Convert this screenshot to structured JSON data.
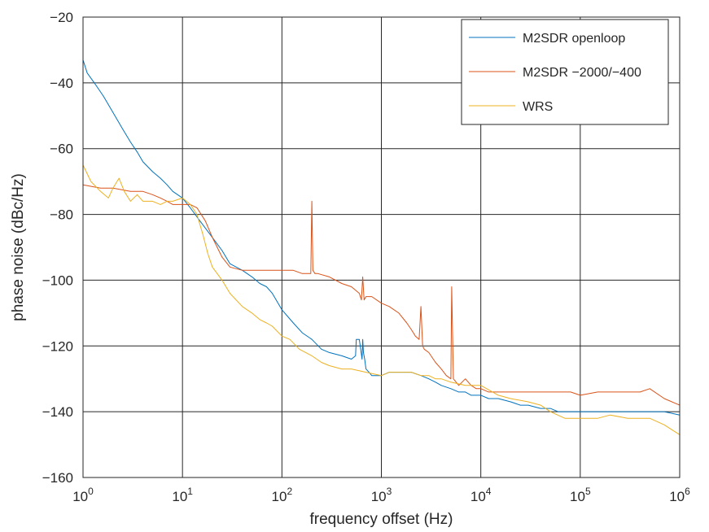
{
  "chart_data": {
    "type": "line",
    "title": "",
    "xlabel": "frequency offset (Hz)",
    "ylabel": "phase noise (dBc/Hz)",
    "xscale": "log",
    "xlim": [
      1,
      1000000
    ],
    "ylim": [
      -160,
      -20
    ],
    "x_ticks": [
      1,
      10,
      100,
      1000,
      10000,
      100000,
      1000000
    ],
    "x_tick_labels": [
      {
        "base": "10",
        "exp": "0"
      },
      {
        "base": "10",
        "exp": "1"
      },
      {
        "base": "10",
        "exp": "2"
      },
      {
        "base": "10",
        "exp": "3"
      },
      {
        "base": "10",
        "exp": "4"
      },
      {
        "base": "10",
        "exp": "5"
      },
      {
        "base": "10",
        "exp": "6"
      }
    ],
    "y_ticks": [
      -160,
      -140,
      -120,
      -100,
      -80,
      -60,
      -40,
      -20
    ],
    "y_tick_labels": [
      "−160",
      "−140",
      "−120",
      "−100",
      "−80",
      "−60",
      "−40",
      "−20"
    ],
    "grid": true,
    "legend_position": "top-right",
    "series": [
      {
        "name": "M2SDR openloop",
        "color": "#0072bd",
        "x": [
          1,
          1.1,
          1.3,
          1.6,
          2,
          2.5,
          3,
          3.5,
          4,
          5,
          6,
          7,
          8,
          10,
          12,
          15,
          20,
          25,
          30,
          40,
          50,
          60,
          70,
          80,
          100,
          130,
          160,
          200,
          250,
          300,
          400,
          500,
          550,
          560,
          600,
          620,
          640,
          650,
          660,
          680,
          700,
          750,
          800,
          900,
          1000,
          1200,
          1500,
          2000,
          2500,
          3000,
          3500,
          4000,
          5000,
          6000,
          7000,
          8000,
          10000,
          12000,
          15000,
          20000,
          25000,
          30000,
          40000,
          50000,
          60000,
          70000,
          80000,
          100000,
          150000,
          200000,
          300000,
          500000,
          700000,
          1000000
        ],
        "y": [
          -33,
          -37,
          -40,
          -44,
          -49,
          -54,
          -58,
          -61,
          -64,
          -67,
          -69,
          -71,
          -73,
          -75,
          -78,
          -82,
          -87,
          -91,
          -95,
          -97,
          -99,
          -101,
          -102,
          -104,
          -109,
          -113,
          -116,
          -118,
          -121,
          -122,
          -123,
          -124,
          -123,
          -118,
          -118,
          -121,
          -124,
          -118,
          -122,
          -124,
          -127,
          -128,
          -129,
          -129,
          -129,
          -128,
          -128,
          -128,
          -129,
          -130,
          -131,
          -132,
          -133,
          -134,
          -134,
          -135,
          -135,
          -136,
          -136,
          -137,
          -138,
          -138,
          -139,
          -139,
          -140,
          -140,
          -140,
          -140,
          -140,
          -140,
          -140,
          -140,
          -140,
          -141
        ]
      },
      {
        "name": "M2SDR −2000/−400",
        "color": "#d95319",
        "x": [
          1,
          1.5,
          2,
          3,
          4,
          5,
          6,
          7,
          8,
          10,
          12,
          14,
          17,
          20,
          25,
          30,
          40,
          50,
          70,
          100,
          130,
          160,
          180,
          195,
          200,
          205,
          215,
          230,
          300,
          400,
          500,
          600,
          630,
          650,
          670,
          700,
          800,
          1000,
          1200,
          1500,
          1800,
          2000,
          2200,
          2400,
          2500,
          2600,
          2700,
          3000,
          3500,
          4000,
          4500,
          5000,
          5100,
          5300,
          6000,
          7000,
          8000,
          9000,
          10000,
          12000,
          15000,
          20000,
          25000,
          30000,
          40000,
          50000,
          60000,
          80000,
          100000,
          150000,
          200000,
          300000,
          400000,
          500000,
          700000,
          1000000
        ],
        "y": [
          -71,
          -72,
          -72,
          -73,
          -73,
          -74,
          -75,
          -76,
          -77,
          -77,
          -77,
          -78,
          -82,
          -87,
          -93,
          -96,
          -97,
          -97,
          -97,
          -97,
          -97,
          -98,
          -98,
          -98,
          -76,
          -97,
          -98,
          -98,
          -99,
          -101,
          -102,
          -104,
          -106,
          -99,
          -106,
          -105,
          -105,
          -107,
          -108,
          -110,
          -113,
          -115,
          -117,
          -118,
          -108,
          -120,
          -121,
          -122,
          -125,
          -127,
          -129,
          -130,
          -102,
          -130,
          -132,
          -130,
          -132,
          -133,
          -133,
          -134,
          -134,
          -134,
          -134,
          -134,
          -134,
          -134,
          -134,
          -134,
          -135,
          -134,
          -134,
          -134,
          -134,
          -133,
          -136,
          -138
        ]
      },
      {
        "name": "WRS",
        "color": "#edb120",
        "x": [
          1,
          1.2,
          1.5,
          1.8,
          2,
          2.3,
          2.6,
          3,
          3.5,
          4,
          5,
          6,
          7,
          8,
          10,
          12,
          14,
          16,
          18,
          20,
          25,
          30,
          40,
          50,
          60,
          70,
          80,
          100,
          120,
          150,
          200,
          250,
          300,
          400,
          500,
          700,
          1000,
          1200,
          1500,
          2000,
          2500,
          3000,
          3500,
          4000,
          5000,
          7000,
          10000,
          15000,
          20000,
          30000,
          40000,
          50000,
          70000,
          100000,
          150000,
          200000,
          300000,
          500000,
          700000,
          1000000
        ],
        "y": [
          -65,
          -70,
          -73,
          -75,
          -72,
          -69,
          -73,
          -76,
          -74,
          -76,
          -76,
          -77,
          -76,
          -76,
          -75,
          -77,
          -80,
          -86,
          -92,
          -96,
          -100,
          -104,
          -108,
          -110,
          -112,
          -113,
          -114,
          -117,
          -118,
          -121,
          -123,
          -125,
          -126,
          -127,
          -127,
          -128,
          -129,
          -128,
          -128,
          -128,
          -129,
          -129,
          -130,
          -130,
          -131,
          -132,
          -132,
          -135,
          -136,
          -137,
          -138,
          -140,
          -142,
          -142,
          -142,
          -141,
          -142,
          -142,
          -144,
          -147
        ]
      }
    ]
  }
}
